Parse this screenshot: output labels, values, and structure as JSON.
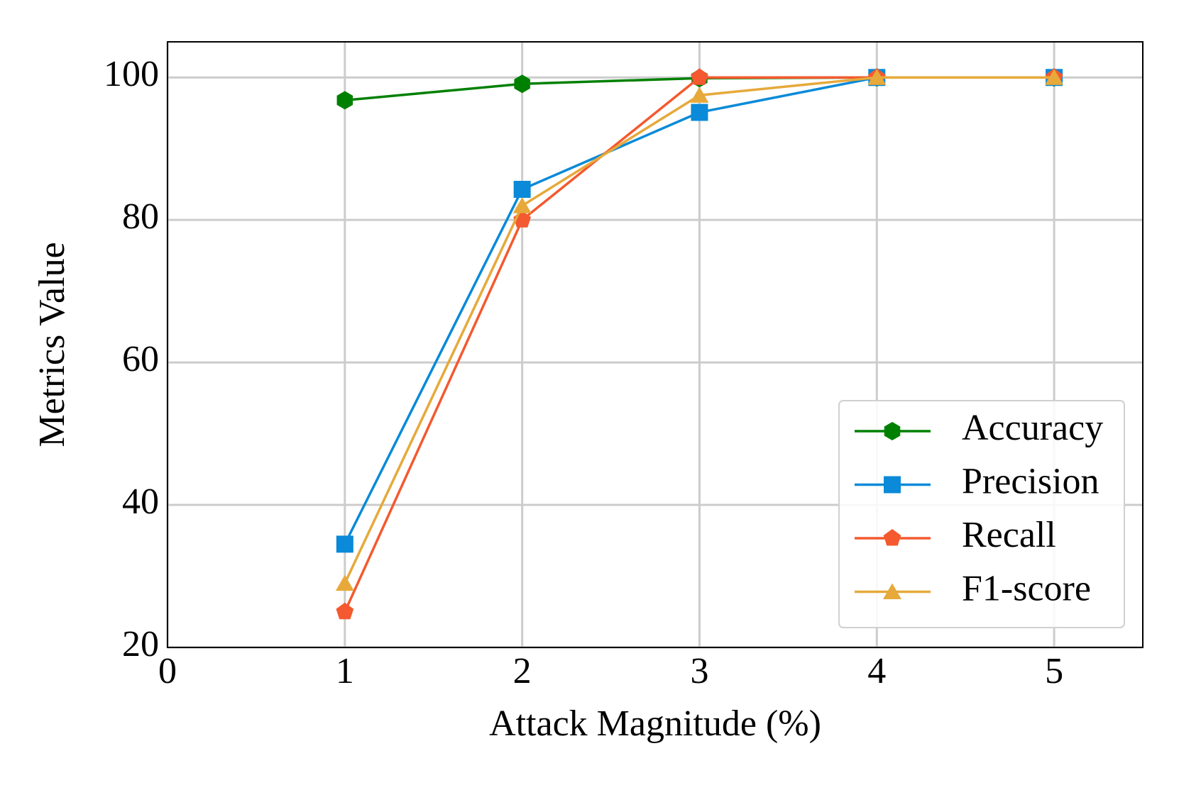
{
  "chart_data": {
    "type": "line",
    "x_label": "Attack Magnitude (%)",
    "y_label": "Metrics Value",
    "x": [
      1,
      2,
      3,
      4,
      5
    ],
    "series": [
      {
        "name": "Accuracy",
        "color": "#008000",
        "marker": "hexagon",
        "values": [
          96.8,
          99.1,
          99.9,
          100,
          100
        ]
      },
      {
        "name": "Precision",
        "color": "#0a8ad8",
        "marker": "square",
        "values": [
          34.5,
          84.3,
          95.1,
          100,
          100
        ]
      },
      {
        "name": "Recall",
        "color": "#f4592f",
        "marker": "pentagon",
        "values": [
          25,
          80,
          100,
          100,
          100
        ]
      },
      {
        "name": "F1-score",
        "color": "#e6a93a",
        "marker": "triangle",
        "values": [
          29,
          82,
          97.5,
          100,
          100
        ]
      }
    ],
    "xlim": [
      0,
      5.5
    ],
    "ylim": [
      20,
      105
    ],
    "xticks": [
      0,
      1,
      2,
      3,
      4,
      5
    ],
    "yticks": [
      20,
      40,
      60,
      80,
      100
    ],
    "grid": true,
    "legend": "lower right"
  }
}
